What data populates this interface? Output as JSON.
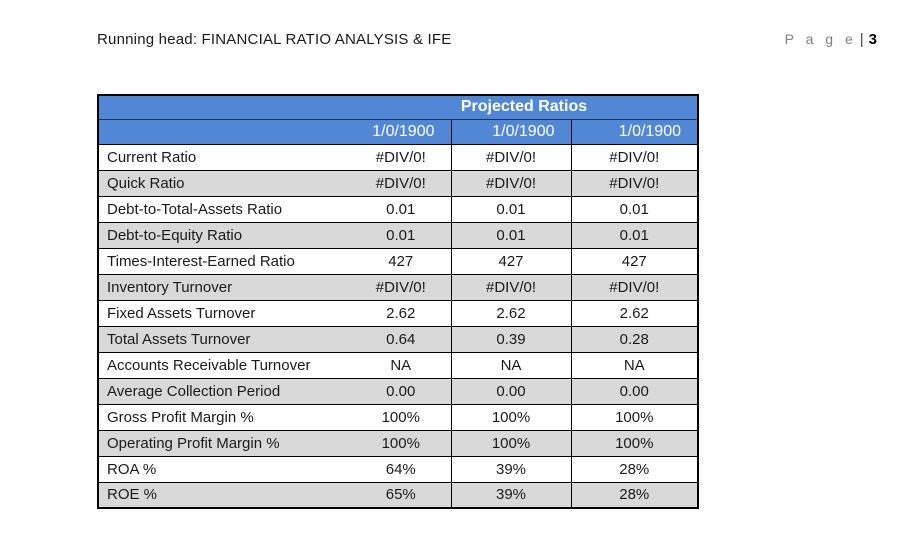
{
  "page_header": {
    "running_head": "Running head: FINANCIAL RATIO ANALYSIS & IFE",
    "page_word": "P a g e",
    "separator": "|",
    "page_number": "3"
  },
  "table": {
    "title": "Projected Ratios",
    "date_headers": [
      "1/0/1900",
      "1/0/1900",
      "1/0/1900"
    ],
    "rows": [
      {
        "label": "Current Ratio",
        "values": [
          "#DIV/0!",
          "#DIV/0!",
          "#DIV/0!"
        ]
      },
      {
        "label": "Quick Ratio",
        "values": [
          "#DIV/0!",
          "#DIV/0!",
          "#DIV/0!"
        ]
      },
      {
        "label": "Debt-to-Total-Assets Ratio",
        "values": [
          "0.01",
          "0.01",
          "0.01"
        ]
      },
      {
        "label": "Debt-to-Equity Ratio",
        "values": [
          "0.01",
          "0.01",
          "0.01"
        ]
      },
      {
        "label": "Times-Interest-Earned Ratio",
        "values": [
          "427",
          "427",
          "427"
        ]
      },
      {
        "label": "Inventory Turnover",
        "values": [
          "#DIV/0!",
          "#DIV/0!",
          "#DIV/0!"
        ]
      },
      {
        "label": "Fixed Assets Turnover",
        "values": [
          "2.62",
          "2.62",
          "2.62"
        ]
      },
      {
        "label": "Total Assets Turnover",
        "values": [
          "0.64",
          "0.39",
          "0.28"
        ]
      },
      {
        "label": "Accounts Receivable Turnover",
        "values": [
          "NA",
          "NA",
          "NA"
        ]
      },
      {
        "label": "Average Collection Period",
        "values": [
          "0.00",
          "0.00",
          "0.00"
        ]
      },
      {
        "label": "Gross Profit Margin %",
        "values": [
          "100%",
          "100%",
          "100%"
        ]
      },
      {
        "label": "Operating Profit Margin %",
        "values": [
          "100%",
          "100%",
          "100%"
        ]
      },
      {
        "label": "ROA %",
        "values": [
          "64%",
          "39%",
          "28%"
        ]
      },
      {
        "label": "ROE %",
        "values": [
          "65%",
          "39%",
          "28%"
        ]
      }
    ]
  },
  "colors": {
    "header_blue": "#5287d5",
    "row_shade_gray": "#d9d9d9",
    "page_word_gray": "#7f7f7f",
    "border_black": "#000000"
  }
}
